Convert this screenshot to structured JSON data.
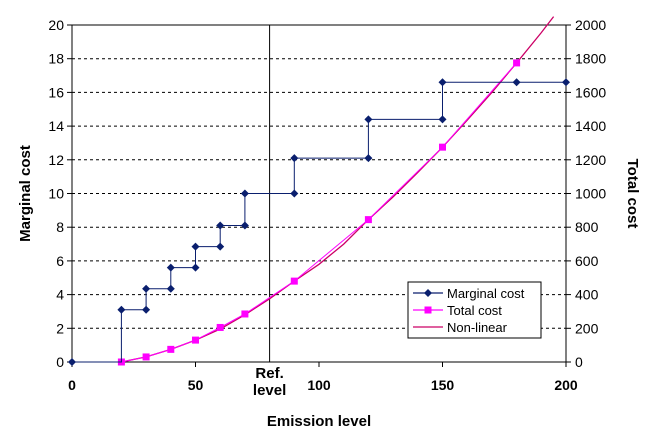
{
  "chart_data": {
    "type": "line",
    "xlabel": "Emission level",
    "ylabel_left": "Marginal cost",
    "ylabel_right": "Total cost",
    "xlim": [
      0,
      200
    ],
    "ylim_left": [
      0,
      20
    ],
    "ylim_right": [
      0,
      2000
    ],
    "x_ticks": [
      "0",
      "50",
      "100",
      "150",
      "200"
    ],
    "y_ticks_left": [
      "0",
      "2",
      "4",
      "6",
      "8",
      "10",
      "12",
      "14",
      "16",
      "18",
      "20"
    ],
    "y_ticks_right": [
      "0",
      "200",
      "400",
      "600",
      "800",
      "1000",
      "1200",
      "1400",
      "1600",
      "1800",
      "2000"
    ],
    "grid": "horizontal dashed",
    "legend_position": "bottom-right",
    "reference_line": {
      "x": 80,
      "label_line1": "Ref.",
      "label_line2": "level"
    },
    "series": [
      {
        "name": "Marginal cost",
        "axis": "left",
        "color": "#0a1f6e",
        "marker": "diamond",
        "points": [
          [
            0,
            0
          ],
          [
            20,
            0
          ],
          [
            20,
            3.1
          ],
          [
            30,
            3.1
          ],
          [
            30,
            4.35
          ],
          [
            40,
            4.35
          ],
          [
            40,
            5.6
          ],
          [
            50,
            5.6
          ],
          [
            50,
            6.85
          ],
          [
            60,
            6.85
          ],
          [
            60,
            8.1
          ],
          [
            70,
            8.1
          ],
          [
            70,
            10.0
          ],
          [
            90,
            10.0
          ],
          [
            90,
            12.1
          ],
          [
            120,
            12.1
          ],
          [
            120,
            14.4
          ],
          [
            150,
            14.4
          ],
          [
            150,
            16.6
          ],
          [
            180,
            16.6
          ],
          [
            200,
            16.6
          ]
        ],
        "marker_points": [
          [
            0,
            0
          ],
          [
            20,
            3.1
          ],
          [
            30,
            3.1
          ],
          [
            30,
            4.35
          ],
          [
            40,
            4.35
          ],
          [
            40,
            5.6
          ],
          [
            50,
            5.6
          ],
          [
            50,
            6.85
          ],
          [
            60,
            6.85
          ],
          [
            60,
            8.1
          ],
          [
            70,
            8.1
          ],
          [
            70,
            10.0
          ],
          [
            90,
            10.0
          ],
          [
            90,
            12.1
          ],
          [
            120,
            12.1
          ],
          [
            120,
            14.4
          ],
          [
            150,
            14.4
          ],
          [
            150,
            16.6
          ],
          [
            180,
            16.6
          ],
          [
            200,
            16.6
          ]
        ]
      },
      {
        "name": "Total cost",
        "axis": "right",
        "color": "#ff00ff",
        "marker": "square",
        "points": [
          [
            20,
            0
          ],
          [
            30,
            30
          ],
          [
            40,
            75
          ],
          [
            50,
            130
          ],
          [
            60,
            205
          ],
          [
            70,
            285
          ],
          [
            90,
            480
          ],
          [
            120,
            845
          ],
          [
            150,
            1275
          ],
          [
            180,
            1775
          ]
        ]
      },
      {
        "name": "Non-linear",
        "axis": "right",
        "color": "#cc0066",
        "marker": "none",
        "points": [
          [
            20,
            0
          ],
          [
            30,
            30
          ],
          [
            40,
            75
          ],
          [
            50,
            130
          ],
          [
            60,
            195
          ],
          [
            70,
            280
          ],
          [
            80,
            375
          ],
          [
            90,
            480
          ],
          [
            100,
            580
          ],
          [
            110,
            700
          ],
          [
            120,
            845
          ],
          [
            130,
            980
          ],
          [
            140,
            1125
          ],
          [
            150,
            1275
          ],
          [
            160,
            1435
          ],
          [
            170,
            1600
          ],
          [
            180,
            1775
          ],
          [
            190,
            1955
          ],
          [
            195,
            2050
          ]
        ]
      }
    ]
  }
}
